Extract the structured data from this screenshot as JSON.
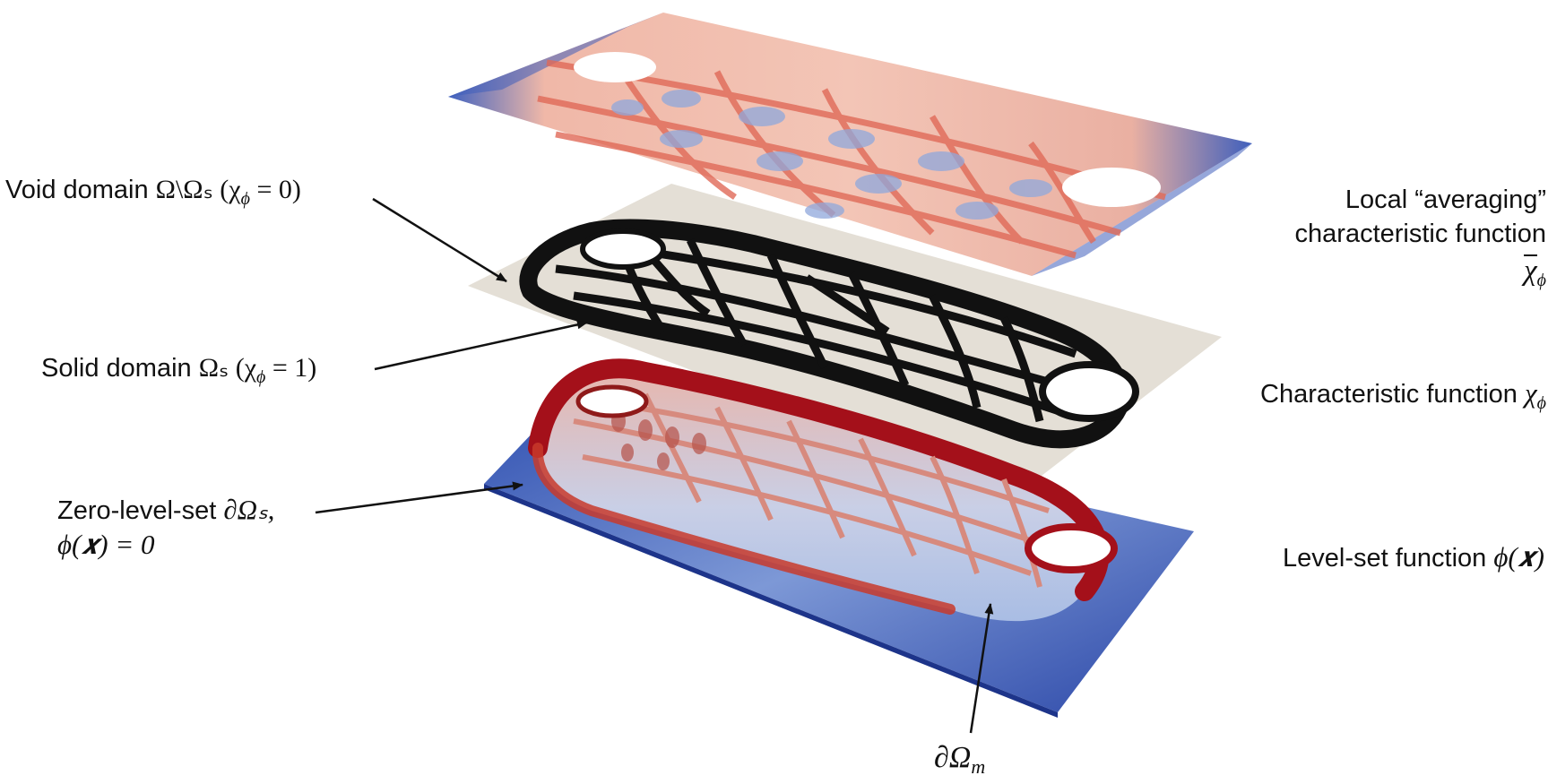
{
  "labels": {
    "void_domain": {
      "text": "Void domain ",
      "math": "Ω\\Ωₛ (χ",
      "sub": "ϕ",
      "tail": " = 0)"
    },
    "solid_domain": {
      "text": "Solid domain ",
      "math": "Ωₛ (χ",
      "sub": "ϕ",
      "tail": " = 1)"
    },
    "zero_level_set": {
      "line1_text": "Zero-level-set ",
      "line1_math": "∂Ωₛ,",
      "line2_math": "ϕ(𝒙) = 0"
    },
    "averaging": {
      "line1": "Local “averaging”",
      "line2": "characteristic function",
      "symbol": "χ",
      "sub": "ϕ"
    },
    "characteristic": {
      "text": "Characteristic function ",
      "symbol": "χ",
      "sub": "ϕ"
    },
    "level_set": {
      "text": "Level-set function ",
      "math": "ϕ(𝒙)"
    },
    "boundary_m": {
      "math": "∂Ω",
      "sub": "m"
    }
  },
  "colors": {
    "blue": "#3b58b8",
    "light_blue": "#9cb4de",
    "red": "#c8392c",
    "dark_red": "#a4101a",
    "beige": "#e4dfd6",
    "black": "#111111"
  }
}
